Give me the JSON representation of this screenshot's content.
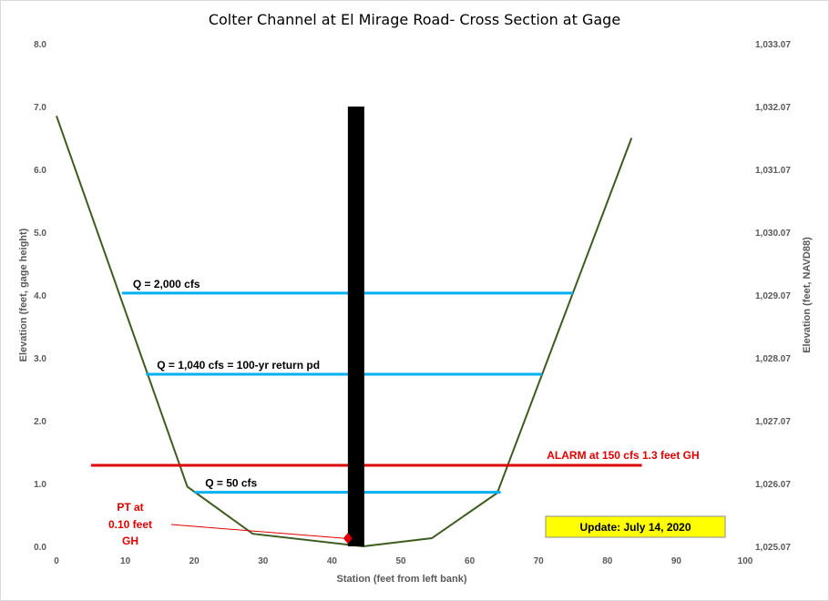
{
  "chart_data": {
    "type": "line",
    "title": "Colter Channel at El Mirage Road- Cross Section at Gage",
    "xlabel": "Station (feet from left bank)",
    "ylabel_left": "Elevation (feet, gage height)",
    "ylabel_right": "Elevation (feet, NAVD88)",
    "xlim": [
      0,
      100
    ],
    "ylim": [
      0,
      8
    ],
    "x_ticks": [
      0,
      10,
      20,
      30,
      40,
      50,
      60,
      70,
      80,
      90,
      100
    ],
    "y_ticks": [
      0,
      1,
      2,
      3,
      4,
      5,
      6,
      7,
      8
    ],
    "y_tick_labels": [
      "0.0",
      "1.0",
      "2.0",
      "3.0",
      "4.0",
      "5.0",
      "6.0",
      "7.0",
      "8.0"
    ],
    "y2_tick_labels": [
      "1,025.07",
      "1,026.07",
      "1,027.07",
      "1,028.07",
      "1,029.07",
      "1,030.07",
      "1,031.07",
      "1,032.07",
      "1,033.07"
    ],
    "grid": false,
    "colors": {
      "ground": "#3d5c1f",
      "flow": "#00b0f0",
      "alarm": "#e00000",
      "gage": "#000000",
      "update_box": "#ffff00"
    },
    "ground_profile": {
      "x": [
        0,
        19,
        28.5,
        44.5,
        54.5,
        64,
        83.5
      ],
      "y": [
        6.85,
        0.95,
        0.2,
        0.0,
        0.13,
        0.85,
        6.5
      ]
    },
    "flow_lines": [
      {
        "label": "Q = 2,000  cfs",
        "x": [
          9.5,
          75
        ],
        "y": 4.03
      },
      {
        "label": "Q = 1,040  cfs = 100-yr  return pd",
        "x": [
          13,
          70.5
        ],
        "y": 2.74
      },
      {
        "label": "Q = 50  cfs",
        "x": [
          20,
          64.5
        ],
        "y": 0.86
      }
    ],
    "alarm_line": {
      "label": "ALARM at 150  cfs 1.3 feet GH",
      "x": [
        5,
        85
      ],
      "y": 1.29
    },
    "gage_post": {
      "x": 43.5,
      "y": [
        0,
        7.0
      ]
    },
    "pt_marker": {
      "x": 42.3,
      "y": 0.1
    },
    "pt_label_lines": [
      "PT at",
      "0.10  feet",
      "GH"
    ],
    "update_label": "Update: July 14, 2020"
  }
}
